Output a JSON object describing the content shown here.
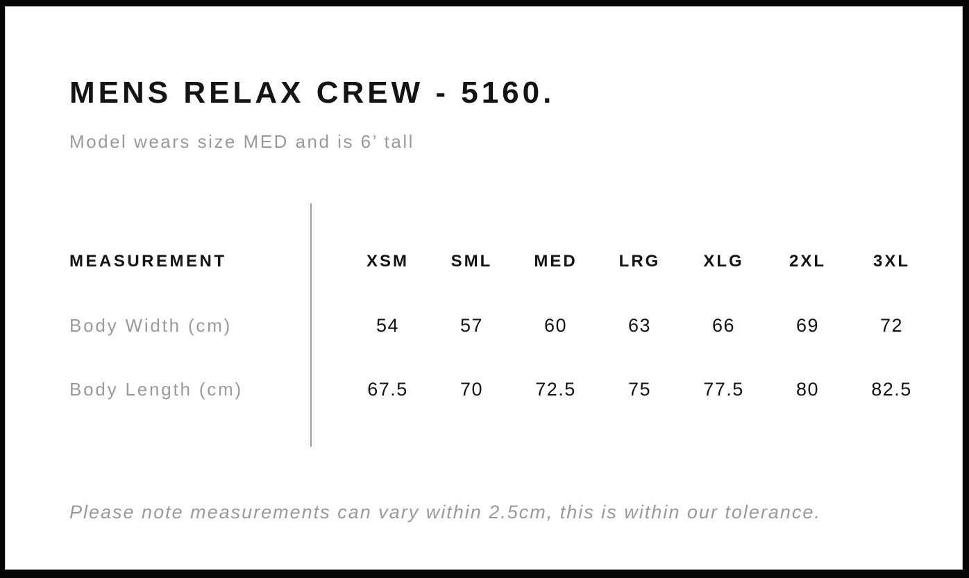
{
  "page": {
    "title": "MENS RELAX CREW - 5160.",
    "subtitle": "Model wears size MED and is 6’ tall",
    "note": "Please note measurements can vary within 2.5cm, this is within our tolerance."
  },
  "table": {
    "header": "MEASUREMENT",
    "sizes": [
      "XSM",
      "SML",
      "MED",
      "LRG",
      "XLG",
      "2XL",
      "3XL"
    ],
    "rows": [
      {
        "label": "Body Width (cm)",
        "values": [
          "54",
          "57",
          "60",
          "63",
          "66",
          "69",
          "72"
        ]
      },
      {
        "label": "Body Length (cm)",
        "values": [
          "67.5",
          "70",
          "72.5",
          "75",
          "77.5",
          "80",
          "82.5"
        ]
      }
    ]
  },
  "colors": {
    "frame": "#060606",
    "text_primary": "#131313",
    "text_secondary": "#9a9a9a",
    "divider": "#9e9e9e",
    "background": "#ffffff"
  },
  "chart_data": {
    "type": "table",
    "title": "MENS RELAX CREW - 5160.",
    "subtitle": "Model wears size MED and is 6’ tall",
    "columns": [
      "MEASUREMENT",
      "XSM",
      "SML",
      "MED",
      "LRG",
      "XLG",
      "2XL",
      "3XL"
    ],
    "rows": [
      [
        "Body Width (cm)",
        54,
        57,
        60,
        63,
        66,
        69,
        72
      ],
      [
        "Body Length (cm)",
        67.5,
        70,
        72.5,
        75,
        77.5,
        80,
        82.5
      ]
    ],
    "footnote": "Please note measurements can vary within 2.5cm, this is within our tolerance."
  }
}
